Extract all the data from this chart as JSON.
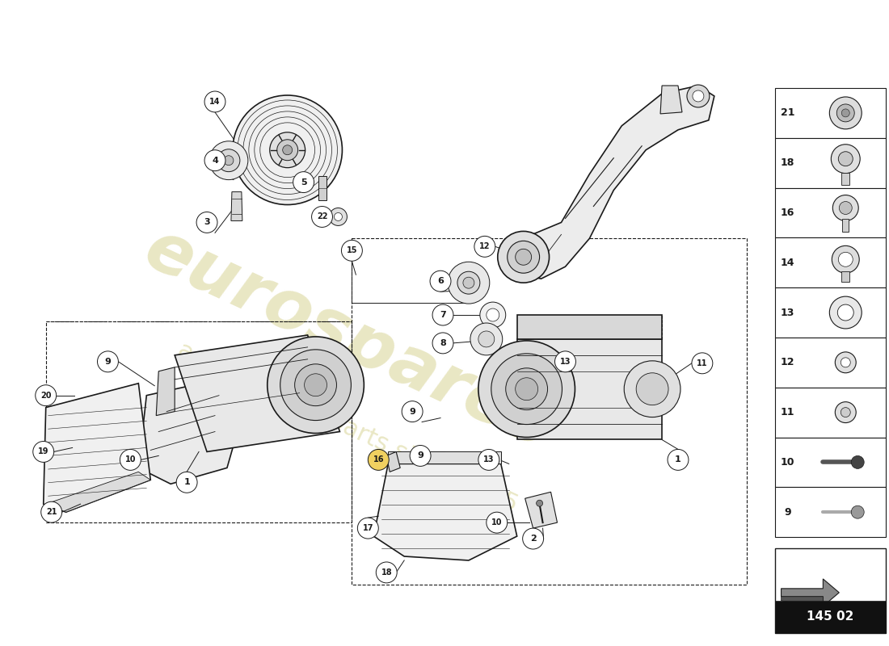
{
  "background_color": "#ffffff",
  "line_color": "#1a1a1a",
  "watermark1": "eurospares",
  "watermark2": "a passion for parts since 1985",
  "wm_color": "#d4cf8a",
  "part_number": "145 02",
  "fig_width": 11.0,
  "fig_height": 8.0,
  "dpi": 100
}
